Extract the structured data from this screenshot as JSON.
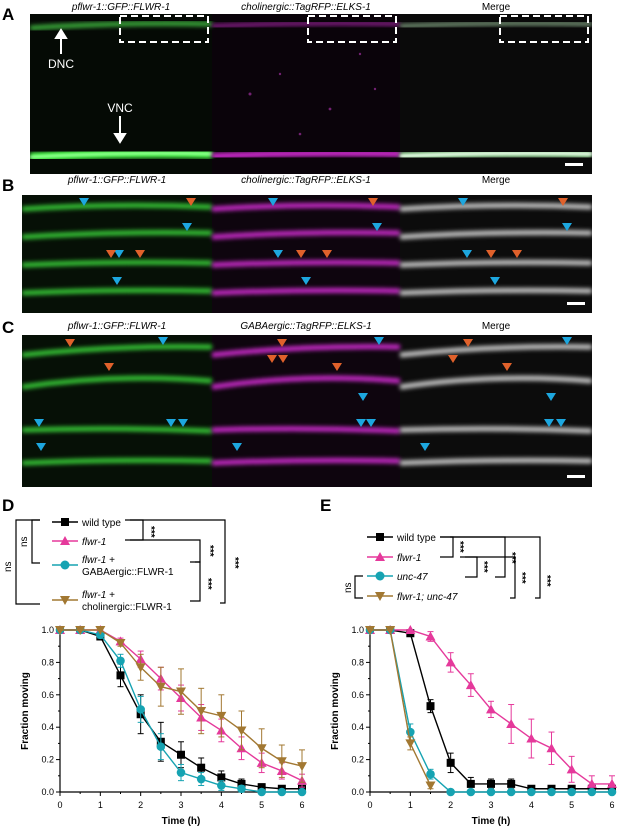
{
  "panels": {
    "A": {
      "label": "A",
      "titles": [
        "pflwr-1::GFP::FLWR-1",
        "cholinergic::TagRFP::ELKS-1",
        "Merge"
      ],
      "annotations": {
        "dnc": "DNC",
        "vnc": "VNC"
      }
    },
    "B": {
      "label": "B",
      "titles": [
        "pflwr-1::GFP::FLWR-1",
        "cholinergic::TagRFP::ELKS-1",
        "Merge"
      ]
    },
    "C": {
      "label": "C",
      "titles": [
        "pflwr-1::GFP::FLWR-1",
        "GABAergic::TagRFP::ELKS-1",
        "Merge"
      ]
    },
    "D": {
      "label": "D",
      "legend": [
        {
          "line1": "wild type",
          "line2": "",
          "color": "#000000",
          "marker": "square"
        },
        {
          "line1": "flwr-1",
          "line2": "",
          "color": "#e5399b",
          "marker": "triangle-up"
        },
        {
          "line1": "flwr-1 +",
          "line2": "GABAergic::FLWR-1",
          "color": "#16a3b2",
          "marker": "circle"
        },
        {
          "line1": "flwr-1 +",
          "line2": "cholinergic::FLWR-1",
          "color": "#a27832",
          "marker": "triangle-down"
        }
      ],
      "stats": {
        "sig": "***",
        "ns": "ns"
      }
    },
    "E": {
      "label": "E",
      "legend": [
        {
          "line1": "wild type",
          "color": "#000000",
          "marker": "square"
        },
        {
          "line1": "flwr-1",
          "color": "#e5399b",
          "marker": "triangle-up"
        },
        {
          "line1": "unc-47",
          "color": "#16a3b2",
          "marker": "circle"
        },
        {
          "line1": "flwr-1; unc-47",
          "color": "#a27832",
          "marker": "triangle-down"
        }
      ],
      "stats": {
        "sig": "***",
        "ns": "ns"
      }
    }
  },
  "chart_data": [
    {
      "type": "line",
      "panel": "D",
      "xlabel": "Time (h)",
      "ylabel": "Fraction moving",
      "xlim": [
        0,
        6
      ],
      "ylim": [
        0,
        1
      ],
      "xticks": [
        "0",
        "1",
        "2",
        "3",
        "4",
        "5",
        "6"
      ],
      "yticks": [
        "0.0",
        "0.2",
        "0.4",
        "0.6",
        "0.8",
        "1.0"
      ],
      "x": [
        0,
        0.5,
        1,
        1.5,
        2,
        2.5,
        3,
        3.5,
        4,
        4.5,
        5,
        5.5,
        6
      ],
      "series": [
        {
          "name": "wild type",
          "color": "#000000",
          "marker": "square",
          "values": [
            1,
            1,
            0.96,
            0.72,
            0.48,
            0.31,
            0.23,
            0.15,
            0.09,
            0.05,
            0.03,
            0.02,
            0.02
          ],
          "errors": [
            0,
            0,
            0.02,
            0.07,
            0.12,
            0.12,
            0.08,
            0.06,
            0.04,
            0.03,
            0.02,
            0.02,
            0.02
          ]
        },
        {
          "name": "flwr-1",
          "color": "#e5399b",
          "marker": "triangle-up",
          "values": [
            1,
            1,
            1,
            0.93,
            0.82,
            0.7,
            0.58,
            0.46,
            0.38,
            0.27,
            0.18,
            0.13,
            0.07
          ],
          "errors": [
            0,
            0,
            0,
            0.02,
            0.05,
            0.07,
            0.08,
            0.08,
            0.07,
            0.07,
            0.06,
            0.05,
            0.04
          ]
        },
        {
          "name": "flwr-1 + GABAergic::FLWR-1",
          "color": "#16a3b2",
          "marker": "circle",
          "values": [
            1,
            1,
            0.97,
            0.81,
            0.51,
            0.28,
            0.12,
            0.08,
            0.04,
            0.02,
            0,
            0,
            0
          ],
          "errors": [
            0,
            0,
            0.02,
            0.04,
            0.08,
            0.08,
            0.05,
            0.04,
            0.03,
            0.02,
            0,
            0,
            0
          ]
        },
        {
          "name": "flwr-1 + cholinergic::FLWR-1",
          "color": "#a27832",
          "marker": "triangle-down",
          "values": [
            1,
            1,
            1,
            0.92,
            0.77,
            0.65,
            0.62,
            0.5,
            0.47,
            0.38,
            0.27,
            0.19,
            0.16
          ],
          "errors": [
            0,
            0,
            0,
            0.02,
            0.08,
            0.12,
            0.14,
            0.14,
            0.13,
            0.12,
            0.12,
            0.1,
            0.1
          ]
        }
      ]
    },
    {
      "type": "line",
      "panel": "E",
      "xlabel": "Time (h)",
      "ylabel": "Fraction moving",
      "xlim": [
        0,
        6
      ],
      "ylim": [
        0,
        1
      ],
      "xticks": [
        "0",
        "1",
        "2",
        "3",
        "4",
        "5",
        "6"
      ],
      "yticks": [
        "0.0",
        "0.2",
        "0.4",
        "0.6",
        "0.8",
        "1.0"
      ],
      "series": [
        {
          "name": "wild type",
          "color": "#000000",
          "marker": "square",
          "x": [
            0,
            0.5,
            1,
            1.5,
            2,
            2.5,
            3,
            3.5,
            4,
            4.5,
            5,
            5.5,
            6
          ],
          "values": [
            1,
            1,
            0.98,
            0.53,
            0.18,
            0.05,
            0.05,
            0.05,
            0.02,
            0.02,
            0.02,
            0.02,
            0.02
          ],
          "errors": [
            0,
            0,
            0.02,
            0.04,
            0.06,
            0.04,
            0.03,
            0.03,
            0.02,
            0.02,
            0.02,
            0.02,
            0.02
          ]
        },
        {
          "name": "flwr-1",
          "color": "#e5399b",
          "marker": "triangle-up",
          "x": [
            0,
            0.5,
            1,
            1.5,
            2,
            2.5,
            3,
            3.5,
            4,
            4.5,
            5,
            5.5,
            6
          ],
          "values": [
            1,
            1,
            1,
            0.96,
            0.8,
            0.66,
            0.51,
            0.42,
            0.33,
            0.27,
            0.14,
            0.05,
            0.05
          ],
          "errors": [
            0,
            0,
            0,
            0.03,
            0.06,
            0.07,
            0.05,
            0.12,
            0.12,
            0.1,
            0.08,
            0.05,
            0.05
          ]
        },
        {
          "name": "unc-47",
          "color": "#16a3b2",
          "marker": "circle",
          "x": [
            0,
            0.5,
            1,
            1.5,
            2,
            2.5,
            3,
            3.5,
            4,
            4.5,
            5,
            5.5,
            6
          ],
          "values": [
            1,
            1,
            0.37,
            0.11,
            0,
            0,
            0,
            0,
            0,
            0,
            0,
            0,
            0
          ],
          "errors": [
            0,
            0,
            0.05,
            0.03,
            0,
            0,
            0,
            0,
            0,
            0,
            0,
            0,
            0
          ]
        },
        {
          "name": "flwr-1; unc-47",
          "color": "#a27832",
          "marker": "triangle-down",
          "x": [
            0,
            0.5,
            1,
            1.5
          ],
          "values": [
            1,
            1,
            0.3,
            0.04
          ],
          "errors": [
            0,
            0,
            0.04,
            0.02
          ]
        }
      ]
    }
  ]
}
